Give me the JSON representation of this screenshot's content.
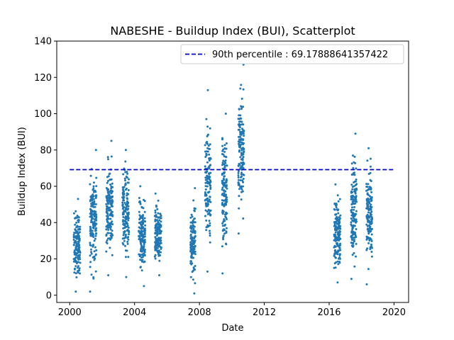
{
  "chart_data": {
    "type": "scatter",
    "title": "NABESHE - Buildup Index (BUI), Scatterplot",
    "xlabel": "Date",
    "ylabel": "Buildup Index (BUI)",
    "xlim": [
      1999.2,
      2020.9
    ],
    "ylim": [
      -4,
      140
    ],
    "xticks": [
      2000,
      2004,
      2008,
      2012,
      2016,
      2020
    ],
    "yticks": [
      0,
      20,
      40,
      60,
      80,
      100,
      120,
      140
    ],
    "grid": false,
    "legend_position": "top-right",
    "colors": {
      "points": "#1f77b4",
      "reference_line": "#0000cc"
    },
    "reference_line": {
      "label": "90th percentile : 69.17888641357422",
      "y": 69.17888641357422,
      "x_range": [
        2000,
        2020
      ],
      "style": "dashed"
    },
    "series": [
      {
        "clusters": [
          {
            "x_range": [
              2000.25,
              2000.65
            ],
            "y_range": [
              2,
              53
            ],
            "n": 150
          },
          {
            "x_range": [
              2001.25,
              2001.65
            ],
            "y_range": [
              2,
              80
            ],
            "n": 150
          },
          {
            "x_range": [
              2002.25,
              2002.65
            ],
            "y_range": [
              11,
              85
            ],
            "n": 160
          },
          {
            "x_range": [
              2003.25,
              2003.65
            ],
            "y_range": [
              10,
              80
            ],
            "n": 150
          },
          {
            "x_range": [
              2004.25,
              2004.65
            ],
            "y_range": [
              5,
              60
            ],
            "n": 150
          },
          {
            "x_range": [
              2005.25,
              2005.65
            ],
            "y_range": [
              11,
              56
            ],
            "n": 150
          },
          {
            "x_range": [
              2007.45,
              2007.75
            ],
            "y_range": [
              1,
              59
            ],
            "n": 120
          },
          {
            "x_range": [
              2008.35,
              2008.7
            ],
            "y_range": [
              13,
              113
            ],
            "n": 140
          },
          {
            "x_range": [
              2009.4,
              2009.7
            ],
            "y_range": [
              12,
              100
            ],
            "n": 140
          },
          {
            "x_range": [
              2010.4,
              2010.75
            ],
            "y_range": [
              34,
              127
            ],
            "n": 150
          },
          {
            "x_range": [
              2016.3,
              2016.7
            ],
            "y_range": [
              7,
              61
            ],
            "n": 160
          },
          {
            "x_range": [
              2017.35,
              2017.7
            ],
            "y_range": [
              9,
              89
            ],
            "n": 150
          },
          {
            "x_range": [
              2018.3,
              2018.65
            ],
            "y_range": [
              6,
              81
            ],
            "n": 150
          }
        ]
      }
    ]
  }
}
